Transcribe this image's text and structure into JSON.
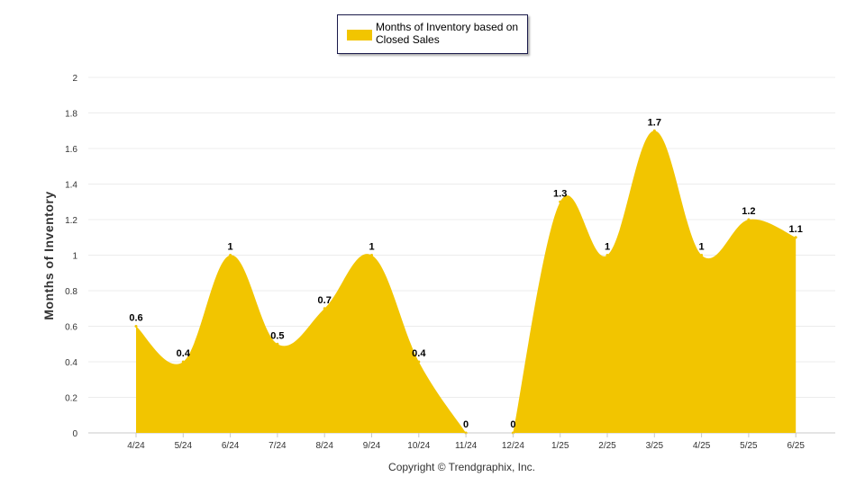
{
  "chart_data": {
    "type": "area",
    "categories": [
      "4/24",
      "5/24",
      "6/24",
      "7/24",
      "8/24",
      "9/24",
      "10/24",
      "11/24",
      "12/24",
      "1/25",
      "2/25",
      "3/25",
      "4/25",
      "5/25",
      "6/25"
    ],
    "series": [
      {
        "name": "Months of Inventory based on Closed Sales",
        "values": [
          0.6,
          0.4,
          1,
          0.5,
          0.7,
          1,
          0.4,
          0,
          0,
          1.3,
          1,
          1.7,
          1,
          1.2,
          1.1
        ],
        "data_labels": [
          "0.6",
          "0.4",
          "1",
          "0.5",
          "0.7",
          "1",
          "0.4",
          "0",
          "0",
          "1.3",
          "1",
          "1.7",
          "1",
          "1.2",
          "1.1"
        ]
      }
    ],
    "ylabel": "Months of Inventory",
    "xlabel": "",
    "ylim": [
      0,
      2
    ],
    "yticks": [
      "0",
      "0.2",
      "0.4",
      "0.6",
      "0.8",
      "1",
      "1.2",
      "1.4",
      "1.6",
      "1.8",
      "2"
    ],
    "grid": true,
    "legend": "top-center",
    "color": "#f2c500"
  },
  "footer": {
    "copyright": "Copyright © Trendgraphix, Inc."
  }
}
